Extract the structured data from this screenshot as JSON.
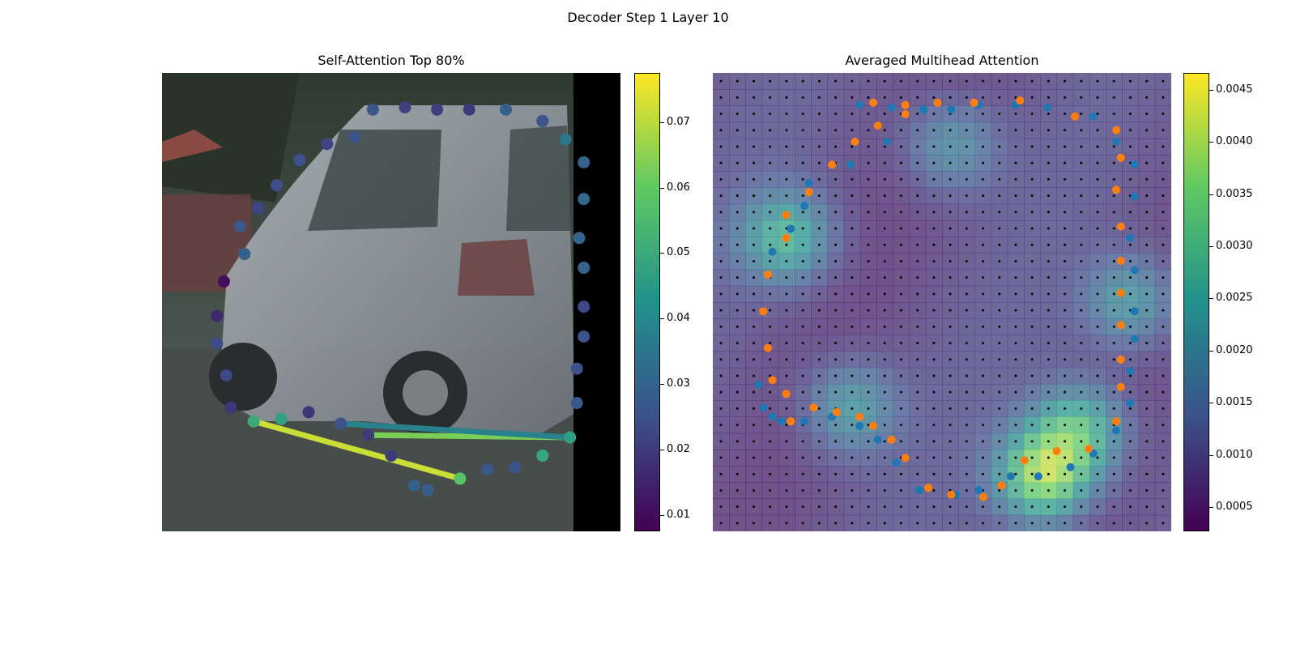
{
  "figure": {
    "title": "Decoder Step 1 Layer 10"
  },
  "colors": {
    "viridis": [
      "#440154",
      "#3b528b",
      "#21918c",
      "#5ec962",
      "#fde725"
    ],
    "blue": "#1f77b4",
    "orange": "#ff7f0e"
  },
  "chart_data": [
    {
      "type": "scatter",
      "title": "Self-Attention Top 80%",
      "background": "photo of a silver minivan on a street",
      "colorbar": {
        "ticks": [
          "0.01",
          "0.02",
          "0.03",
          "0.04",
          "0.05",
          "0.06",
          "0.07"
        ],
        "min": 0.0075,
        "max": 0.0775
      },
      "points": [
        [
          0.46,
          0.08,
          0.026
        ],
        [
          0.53,
          0.075,
          0.021
        ],
        [
          0.6,
          0.08,
          0.021
        ],
        [
          0.67,
          0.08,
          0.02
        ],
        [
          0.75,
          0.08,
          0.029
        ],
        [
          0.83,
          0.105,
          0.025
        ],
        [
          0.88,
          0.145,
          0.035
        ],
        [
          0.42,
          0.14,
          0.025
        ],
        [
          0.36,
          0.155,
          0.022
        ],
        [
          0.3,
          0.19,
          0.025
        ],
        [
          0.25,
          0.245,
          0.024
        ],
        [
          0.21,
          0.295,
          0.022
        ],
        [
          0.17,
          0.335,
          0.027
        ],
        [
          0.18,
          0.395,
          0.029
        ],
        [
          0.135,
          0.455,
          0.01
        ],
        [
          0.12,
          0.53,
          0.016
        ],
        [
          0.12,
          0.59,
          0.024
        ],
        [
          0.14,
          0.66,
          0.023
        ],
        [
          0.15,
          0.73,
          0.019
        ],
        [
          0.2,
          0.76,
          0.05
        ],
        [
          0.26,
          0.755,
          0.047
        ],
        [
          0.32,
          0.74,
          0.019
        ],
        [
          0.39,
          0.765,
          0.025
        ],
        [
          0.45,
          0.79,
          0.02
        ],
        [
          0.5,
          0.835,
          0.02
        ],
        [
          0.55,
          0.9,
          0.029
        ],
        [
          0.58,
          0.91,
          0.028
        ],
        [
          0.65,
          0.885,
          0.058
        ],
        [
          0.71,
          0.865,
          0.026
        ],
        [
          0.77,
          0.86,
          0.025
        ],
        [
          0.83,
          0.835,
          0.049
        ],
        [
          0.89,
          0.795,
          0.047
        ],
        [
          0.92,
          0.195,
          0.03
        ],
        [
          0.92,
          0.275,
          0.031
        ],
        [
          0.91,
          0.36,
          0.03
        ],
        [
          0.92,
          0.425,
          0.03
        ],
        [
          0.92,
          0.51,
          0.023
        ],
        [
          0.92,
          0.575,
          0.025
        ],
        [
          0.905,
          0.645,
          0.025
        ],
        [
          0.905,
          0.72,
          0.027
        ]
      ],
      "links": [
        [
          0.2,
          0.76,
          0.65,
          0.885,
          0.072
        ],
        [
          0.45,
          0.79,
          0.89,
          0.795,
          0.063
        ],
        [
          0.39,
          0.765,
          0.89,
          0.795,
          0.038
        ]
      ]
    },
    {
      "type": "heatmap",
      "title": "Averaged Multihead Attention",
      "grid": 28,
      "colorbar": {
        "ticks": [
          "0.0005",
          "0.0010",
          "0.0015",
          "0.0020",
          "0.0025",
          "0.0030",
          "0.0035",
          "0.0040",
          "0.0045"
        ],
        "min": 0.00027,
        "max": 0.00466
      },
      "series": [
        {
          "name": "blue",
          "points": [
            [
              0.32,
              0.07
            ],
            [
              0.39,
              0.075
            ],
            [
              0.46,
              0.08
            ],
            [
              0.52,
              0.08
            ],
            [
              0.58,
              0.07
            ],
            [
              0.66,
              0.07
            ],
            [
              0.73,
              0.075
            ],
            [
              0.83,
              0.095
            ],
            [
              0.88,
              0.15
            ],
            [
              0.92,
              0.2
            ],
            [
              0.92,
              0.27
            ],
            [
              0.91,
              0.36
            ],
            [
              0.92,
              0.43
            ],
            [
              0.92,
              0.52
            ],
            [
              0.92,
              0.58
            ],
            [
              0.91,
              0.65
            ],
            [
              0.91,
              0.72
            ],
            [
              0.88,
              0.78
            ],
            [
              0.83,
              0.83
            ],
            [
              0.78,
              0.86
            ],
            [
              0.71,
              0.88
            ],
            [
              0.65,
              0.88
            ],
            [
              0.58,
              0.91
            ],
            [
              0.53,
              0.92
            ],
            [
              0.45,
              0.91
            ],
            [
              0.4,
              0.85
            ],
            [
              0.36,
              0.8
            ],
            [
              0.32,
              0.77
            ],
            [
              0.26,
              0.75
            ],
            [
              0.2,
              0.76
            ],
            [
              0.15,
              0.76
            ],
            [
              0.13,
              0.75
            ],
            [
              0.11,
              0.73
            ],
            [
              0.1,
              0.68
            ],
            [
              0.13,
              0.39
            ],
            [
              0.17,
              0.34
            ],
            [
              0.2,
              0.29
            ],
            [
              0.21,
              0.24
            ],
            [
              0.3,
              0.2
            ],
            [
              0.38,
              0.15
            ]
          ]
        },
        {
          "name": "orange",
          "points": [
            [
              0.35,
              0.065
            ],
            [
              0.42,
              0.07
            ],
            [
              0.49,
              0.065
            ],
            [
              0.57,
              0.065
            ],
            [
              0.67,
              0.06
            ],
            [
              0.79,
              0.095
            ],
            [
              0.88,
              0.125
            ],
            [
              0.89,
              0.185
            ],
            [
              0.88,
              0.255
            ],
            [
              0.89,
              0.335
            ],
            [
              0.89,
              0.41
            ],
            [
              0.89,
              0.48
            ],
            [
              0.89,
              0.55
            ],
            [
              0.89,
              0.625
            ],
            [
              0.89,
              0.685
            ],
            [
              0.88,
              0.76
            ],
            [
              0.82,
              0.82
            ],
            [
              0.75,
              0.825
            ],
            [
              0.68,
              0.845
            ],
            [
              0.63,
              0.9
            ],
            [
              0.59,
              0.925
            ],
            [
              0.52,
              0.92
            ],
            [
              0.47,
              0.905
            ],
            [
              0.42,
              0.84
            ],
            [
              0.39,
              0.8
            ],
            [
              0.35,
              0.77
            ],
            [
              0.32,
              0.75
            ],
            [
              0.27,
              0.74
            ],
            [
              0.22,
              0.73
            ],
            [
              0.17,
              0.76
            ],
            [
              0.16,
              0.7
            ],
            [
              0.13,
              0.67
            ],
            [
              0.12,
              0.6
            ],
            [
              0.11,
              0.52
            ],
            [
              0.12,
              0.44
            ],
            [
              0.16,
              0.36
            ],
            [
              0.16,
              0.31
            ],
            [
              0.21,
              0.26
            ],
            [
              0.26,
              0.2
            ],
            [
              0.31,
              0.15
            ],
            [
              0.36,
              0.115
            ],
            [
              0.42,
              0.09
            ]
          ]
        }
      ]
    }
  ]
}
